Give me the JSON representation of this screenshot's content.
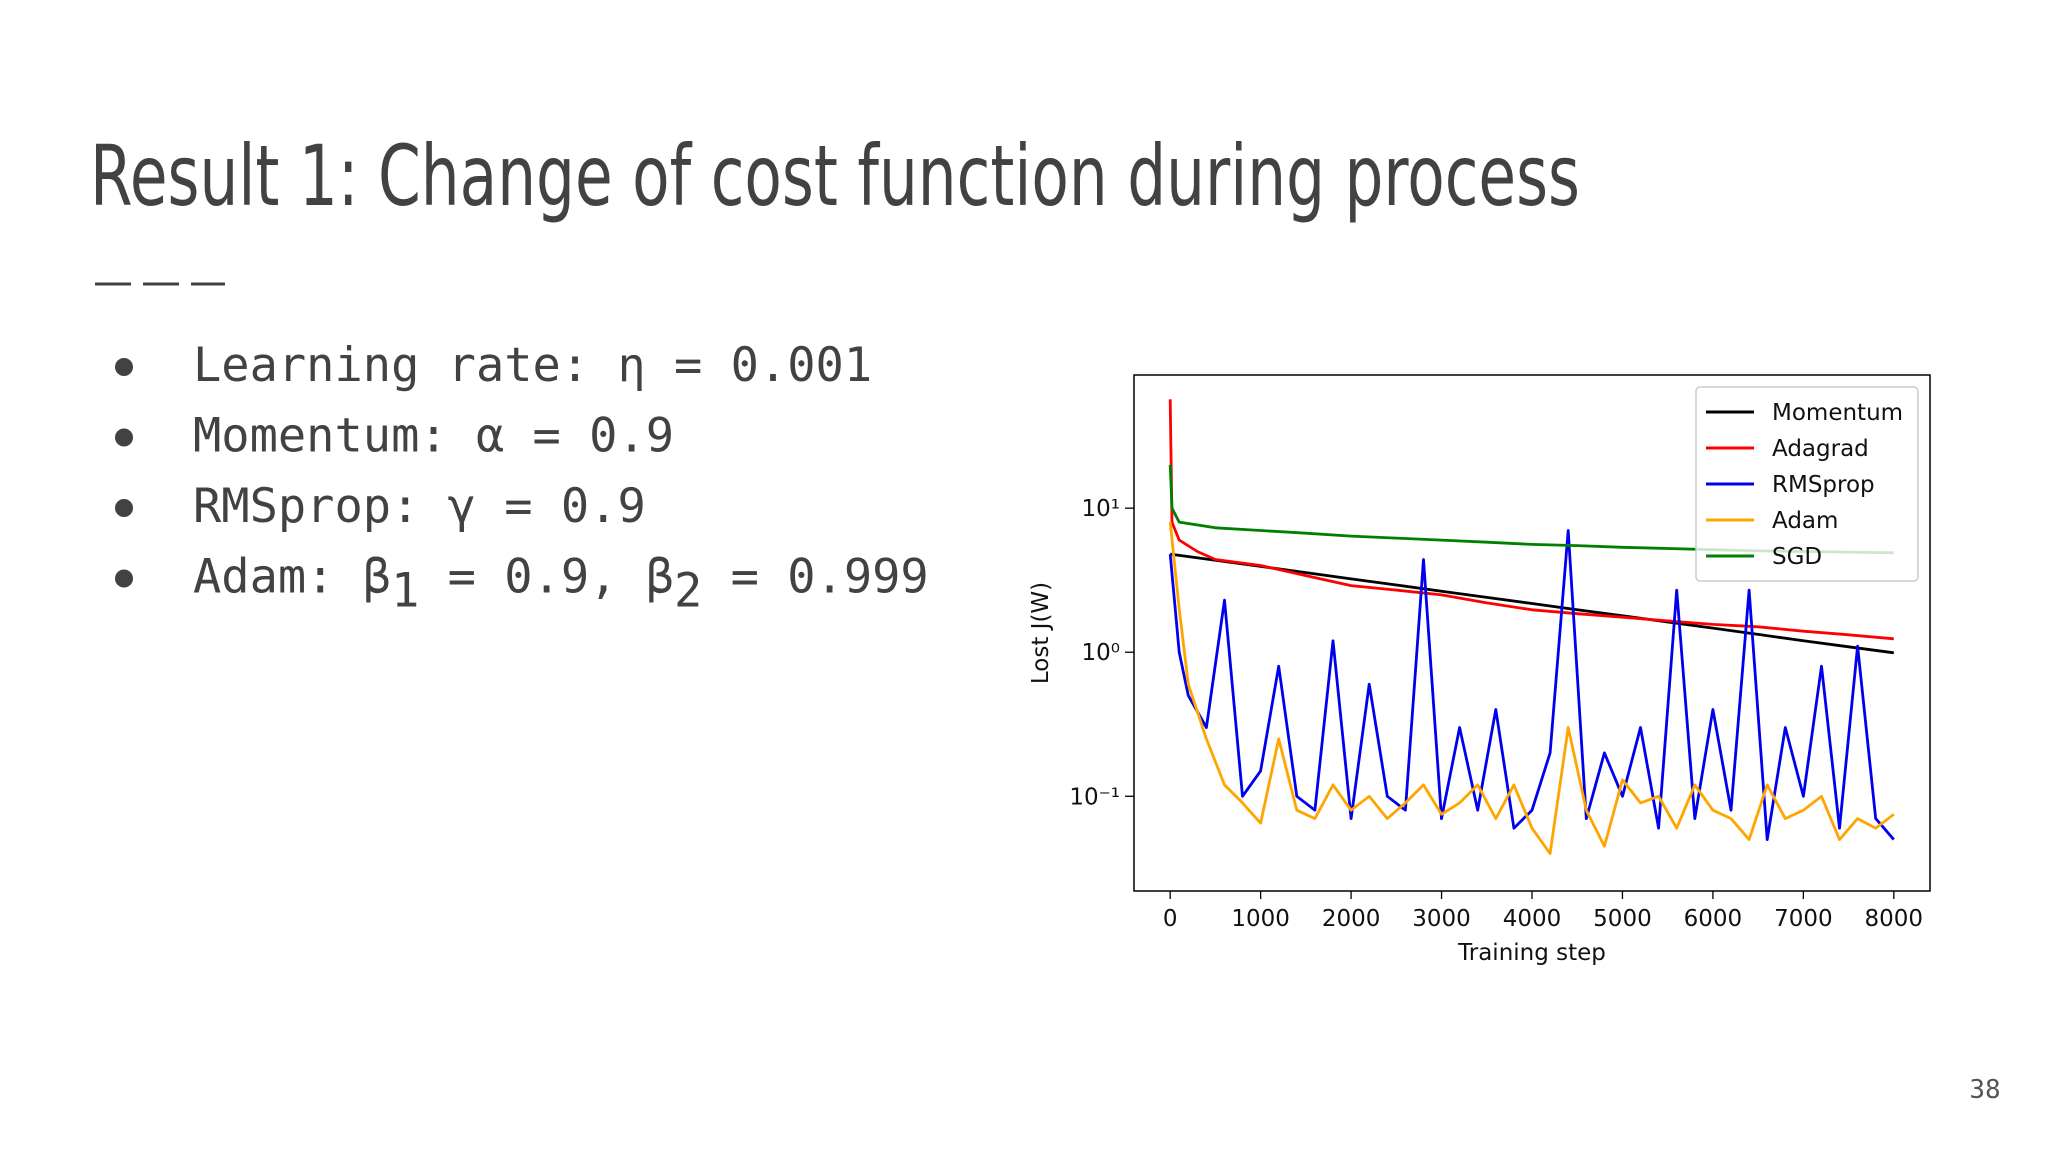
{
  "slide": {
    "title": "Result 1: Change of cost function during process",
    "bullets": [
      [
        "Learning rate: η = 0.001"
      ],
      [
        "Momentum: α = 0.9"
      ],
      [
        "RMSprop: γ = 0.9"
      ],
      [
        "Adam: β",
        "1",
        " = 0.9, β",
        "2",
        " = 0.999"
      ]
    ],
    "page_number": "38"
  },
  "chart_data": {
    "type": "line",
    "x_label": "Training step",
    "y_label": "Lost J(W)",
    "log_y": true,
    "legend": "upper right",
    "xlim": [
      -400,
      8400
    ],
    "xticks": [
      0,
      1000,
      2000,
      3000,
      4000,
      5000,
      6000,
      7000,
      8000
    ],
    "ylim": [
      0.022,
      84
    ],
    "yticks": [
      {
        "value": 0.1,
        "label": "10⁻¹"
      },
      {
        "value": 1,
        "label": "10⁰"
      },
      {
        "value": 10,
        "label": "10¹"
      }
    ],
    "series": [
      {
        "name": "Momentum",
        "color": "#000000",
        "x": [
          0,
          500,
          1000,
          1500,
          2000,
          2500,
          3000,
          3500,
          4000,
          4500,
          5000,
          5500,
          6000,
          6500,
          7000,
          7500,
          8000
        ],
        "values": [
          4.8,
          4.35,
          3.94,
          3.57,
          3.23,
          2.93,
          2.65,
          2.4,
          2.18,
          1.97,
          1.79,
          1.62,
          1.47,
          1.33,
          1.2,
          1.09,
          0.99
        ]
      },
      {
        "name": "Adagrad",
        "color": "#ff0000",
        "x": [
          0,
          20,
          100,
          300,
          500,
          1000,
          1500,
          2000,
          2500,
          3000,
          3500,
          4000,
          4500,
          5000,
          5500,
          6000,
          6500,
          7000,
          7500,
          8000
        ],
        "values": [
          57,
          8,
          6,
          5,
          4.4,
          4,
          3.4,
          2.9,
          2.7,
          2.5,
          2.2,
          1.97,
          1.85,
          1.75,
          1.65,
          1.56,
          1.5,
          1.4,
          1.32,
          1.24
        ]
      },
      {
        "name": "RMSprop",
        "color": "#0000ee",
        "x": [
          0,
          100,
          200,
          400,
          600,
          800,
          1000,
          1200,
          1400,
          1600,
          1800,
          2000,
          2200,
          2400,
          2600,
          2800,
          3000,
          3200,
          3400,
          3600,
          3800,
          4000,
          4200,
          4400,
          4600,
          4800,
          5000,
          5200,
          5400,
          5600,
          5800,
          6000,
          6200,
          6400,
          6600,
          6800,
          7000,
          7200,
          7400,
          7600,
          7800,
          8000
        ],
        "values": [
          4.8,
          1.0,
          0.5,
          0.3,
          2.3,
          0.1,
          0.15,
          0.8,
          0.1,
          0.08,
          1.2,
          0.07,
          0.6,
          0.1,
          0.08,
          4.4,
          0.07,
          0.3,
          0.08,
          0.4,
          0.06,
          0.08,
          0.2,
          7.0,
          0.07,
          0.2,
          0.1,
          0.3,
          0.06,
          2.7,
          0.07,
          0.4,
          0.08,
          2.7,
          0.05,
          0.3,
          0.1,
          0.8,
          0.06,
          1.1,
          0.07,
          0.05
        ]
      },
      {
        "name": "Adam",
        "color": "#ffa500",
        "x": [
          0,
          100,
          200,
          400,
          600,
          800,
          1000,
          1200,
          1400,
          1600,
          1800,
          2000,
          2200,
          2400,
          2600,
          2800,
          3000,
          3200,
          3400,
          3600,
          3800,
          4000,
          4200,
          4400,
          4600,
          4800,
          5000,
          5200,
          5400,
          5600,
          5800,
          6000,
          6200,
          6400,
          6600,
          6800,
          7000,
          7200,
          7400,
          7600,
          7800,
          8000
        ],
        "values": [
          8,
          2.0,
          0.6,
          0.25,
          0.12,
          0.09,
          0.065,
          0.25,
          0.08,
          0.07,
          0.12,
          0.08,
          0.1,
          0.07,
          0.09,
          0.12,
          0.075,
          0.09,
          0.12,
          0.07,
          0.12,
          0.06,
          0.04,
          0.3,
          0.08,
          0.045,
          0.13,
          0.09,
          0.1,
          0.06,
          0.12,
          0.08,
          0.07,
          0.05,
          0.12,
          0.07,
          0.08,
          0.1,
          0.05,
          0.07,
          0.06,
          0.075
        ]
      },
      {
        "name": "SGD",
        "color": "#008000",
        "x": [
          0,
          20,
          100,
          500,
          1000,
          1500,
          2000,
          2500,
          3000,
          3500,
          4000,
          4500,
          5000,
          5500,
          6000,
          6500,
          7000,
          7500,
          8000
        ],
        "values": [
          20,
          10,
          8,
          7.3,
          7,
          6.7,
          6.4,
          6.2,
          6,
          5.8,
          5.6,
          5.5,
          5.35,
          5.25,
          5.15,
          5.05,
          5,
          4.95,
          4.9
        ]
      }
    ]
  }
}
